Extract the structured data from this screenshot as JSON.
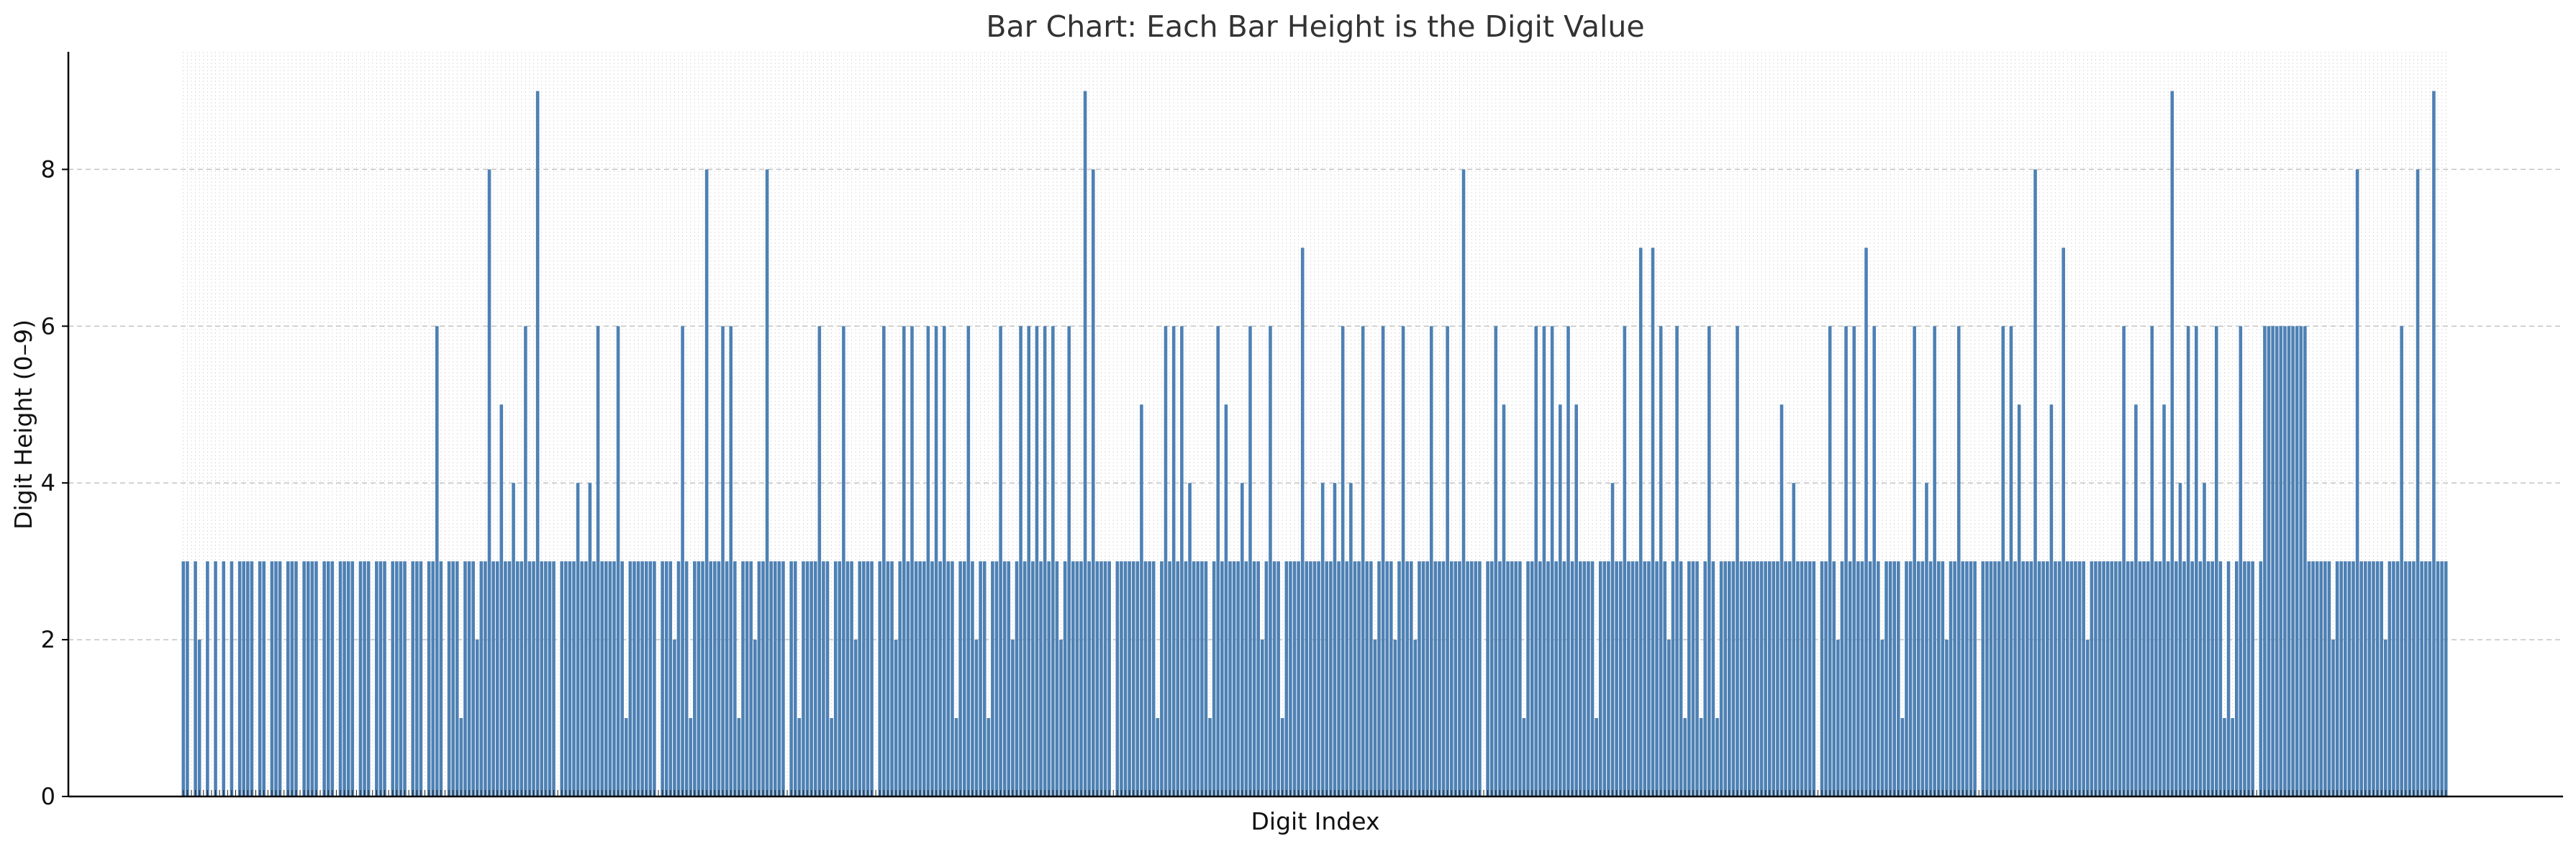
{
  "chart_data": {
    "type": "bar",
    "title": "Bar Chart: Each Bar Height is the Digit Value",
    "xlabel": "Digit Index",
    "ylabel": "Digit Height (0–9)",
    "ylim": [
      0,
      9.5
    ],
    "yticks": [
      0,
      2,
      4,
      6,
      8
    ],
    "grid": true,
    "legend": "none",
    "bar_color": "#4e81b4",
    "values": [
      3,
      3,
      0,
      3,
      2,
      0,
      3,
      0,
      3,
      0,
      3,
      0,
      3,
      0,
      3,
      3,
      3,
      3,
      0,
      3,
      3,
      0,
      3,
      3,
      3,
      0,
      3,
      3,
      3,
      0,
      3,
      3,
      3,
      3,
      0,
      3,
      3,
      3,
      0,
      3,
      3,
      3,
      3,
      0,
      3,
      3,
      3,
      0,
      3,
      3,
      3,
      0,
      3,
      3,
      3,
      3,
      0,
      3,
      3,
      3,
      0,
      3,
      3,
      6,
      3,
      0,
      3,
      3,
      3,
      1,
      3,
      3,
      3,
      2,
      3,
      3,
      8,
      3,
      3,
      5,
      3,
      3,
      4,
      3,
      3,
      6,
      3,
      3,
      9,
      3,
      3,
      3,
      3,
      0,
      3,
      3,
      3,
      3,
      4,
      3,
      3,
      4,
      3,
      6,
      3,
      3,
      3,
      3,
      6,
      3,
      1,
      3,
      3,
      3,
      3,
      3,
      3,
      3,
      0,
      3,
      3,
      3,
      2,
      3,
      6,
      3,
      1,
      3,
      3,
      3,
      8,
      3,
      3,
      3,
      6,
      3,
      6,
      3,
      1,
      3,
      3,
      3,
      2,
      3,
      3,
      8,
      3,
      3,
      3,
      3,
      0,
      3,
      3,
      1,
      3,
      3,
      3,
      3,
      6,
      3,
      3,
      1,
      3,
      3,
      6,
      3,
      3,
      2,
      3,
      3,
      3,
      3,
      0,
      3,
      6,
      3,
      3,
      2,
      3,
      6,
      3,
      6,
      3,
      3,
      3,
      6,
      3,
      6,
      3,
      6,
      3,
      3,
      1,
      3,
      3,
      6,
      3,
      2,
      3,
      3,
      1,
      3,
      3,
      6,
      3,
      3,
      2,
      3,
      6,
      3,
      6,
      3,
      6,
      3,
      6,
      3,
      6,
      3,
      2,
      3,
      6,
      3,
      3,
      3,
      9,
      3,
      8,
      3,
      3,
      3,
      3,
      0,
      3,
      3,
      3,
      3,
      3,
      3,
      5,
      3,
      3,
      3,
      1,
      3,
      6,
      3,
      6,
      3,
      6,
      3,
      4,
      3,
      3,
      3,
      3,
      1,
      3,
      6,
      3,
      5,
      3,
      3,
      3,
      4,
      3,
      6,
      3,
      3,
      2,
      3,
      6,
      3,
      3,
      1,
      3,
      3,
      3,
      3,
      7,
      3,
      3,
      3,
      3,
      4,
      3,
      3,
      4,
      3,
      6,
      3,
      4,
      3,
      3,
      6,
      3,
      3,
      2,
      3,
      6,
      3,
      3,
      2,
      3,
      6,
      3,
      3,
      2,
      3,
      3,
      3,
      6,
      3,
      3,
      3,
      6,
      3,
      3,
      3,
      8,
      3,
      3,
      3,
      3,
      0,
      3,
      3,
      6,
      3,
      5,
      3,
      3,
      3,
      3,
      1,
      3,
      3,
      6,
      3,
      6,
      3,
      6,
      3,
      5,
      3,
      6,
      3,
      5,
      3,
      3,
      3,
      3,
      1,
      3,
      3,
      3,
      4,
      3,
      3,
      6,
      3,
      3,
      3,
      7,
      3,
      3,
      7,
      3,
      6,
      3,
      2,
      3,
      6,
      3,
      1,
      3,
      3,
      3,
      1,
      3,
      6,
      3,
      1,
      3,
      3,
      3,
      3,
      6,
      3,
      3,
      3,
      3,
      3,
      3,
      3,
      3,
      3,
      3,
      5,
      3,
      3,
      4,
      3,
      3,
      3,
      3,
      3,
      0,
      3,
      3,
      6,
      3,
      2,
      3,
      6,
      3,
      6,
      3,
      3,
      7,
      3,
      6,
      3,
      2,
      3,
      3,
      3,
      3,
      1,
      3,
      3,
      6,
      3,
      3,
      4,
      3,
      6,
      3,
      3,
      2,
      3,
      3,
      6,
      3,
      3,
      3,
      3,
      0,
      3,
      3,
      3,
      3,
      3,
      6,
      3,
      6,
      3,
      5,
      3,
      3,
      3,
      8,
      3,
      3,
      3,
      5,
      3,
      3,
      7,
      3,
      3,
      3,
      3,
      3,
      2,
      3,
      3,
      3,
      3,
      3,
      3,
      3,
      3,
      6,
      3,
      3,
      5,
      3,
      3,
      3,
      6,
      3,
      3,
      5,
      3,
      9,
      3,
      4,
      3,
      6,
      3,
      6,
      3,
      4,
      3,
      3,
      6,
      3,
      1,
      3,
      1,
      3,
      6,
      3,
      3,
      3,
      0,
      3,
      6,
      6,
      6,
      6,
      6,
      6,
      6,
      6,
      6,
      6,
      6,
      3,
      3,
      3,
      3,
      3,
      3,
      2,
      3,
      3,
      3,
      3,
      3,
      8,
      3,
      3,
      3,
      3,
      3,
      3,
      2,
      3,
      3,
      3,
      6,
      3,
      3,
      3,
      8,
      3,
      3,
      3,
      9,
      3,
      3,
      3
    ]
  }
}
